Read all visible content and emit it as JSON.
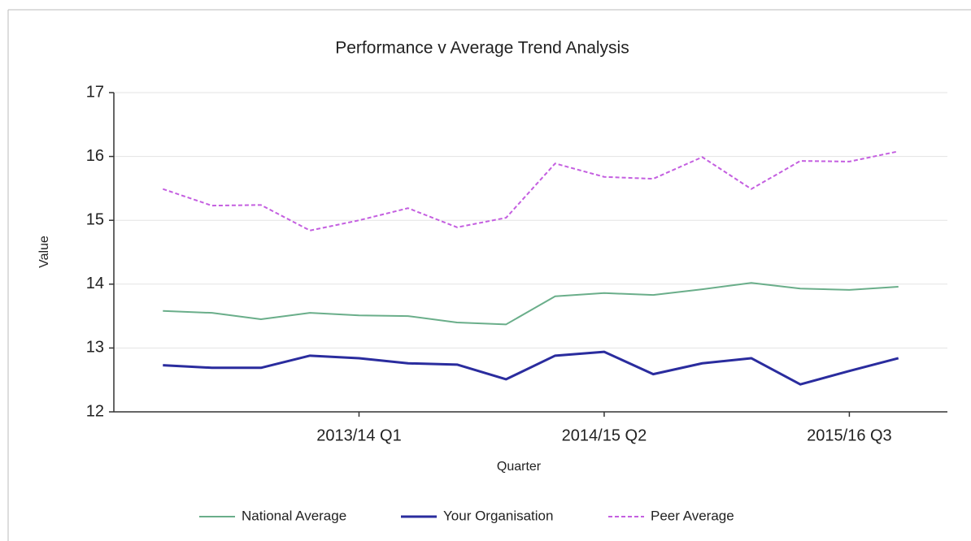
{
  "chart_data": {
    "type": "line",
    "title": "Performance v Average Trend Analysis",
    "x_label": "Quarter",
    "y_label": "Value",
    "categories": [
      null,
      null,
      null,
      null,
      "2013/14 Q1",
      null,
      null,
      null,
      null,
      "2014/15 Q2",
      null,
      null,
      null,
      null,
      "2015/16 Q3",
      null
    ],
    "series": [
      {
        "name": "National Average",
        "color": "#6aae8a",
        "style": "solid",
        "width": 2,
        "values": [
          13.58,
          13.55,
          13.45,
          13.55,
          13.51,
          13.5,
          13.4,
          13.37,
          13.81,
          13.86,
          13.83,
          13.92,
          14.02,
          13.93,
          13.91,
          13.96
        ]
      },
      {
        "name": "Your Organisation",
        "color": "#2a2c9e",
        "style": "solid",
        "width": 3,
        "values": [
          12.73,
          12.69,
          12.69,
          12.88,
          12.84,
          12.76,
          12.74,
          12.51,
          12.88,
          12.94,
          12.59,
          12.76,
          12.84,
          12.43,
          12.64,
          12.84
        ]
      },
      {
        "name": "Peer Average",
        "color": "#c45fe0",
        "style": "dashed",
        "width": 2,
        "values": [
          15.49,
          15.23,
          15.24,
          14.84,
          15.0,
          15.19,
          14.89,
          15.04,
          15.89,
          15.68,
          15.65,
          15.99,
          15.49,
          15.93,
          15.92,
          16.08
        ]
      }
    ],
    "ylim": [
      12,
      17
    ],
    "yticks": [
      12,
      13,
      14,
      15,
      16,
      17
    ],
    "grid": true,
    "legend": "bottom"
  }
}
